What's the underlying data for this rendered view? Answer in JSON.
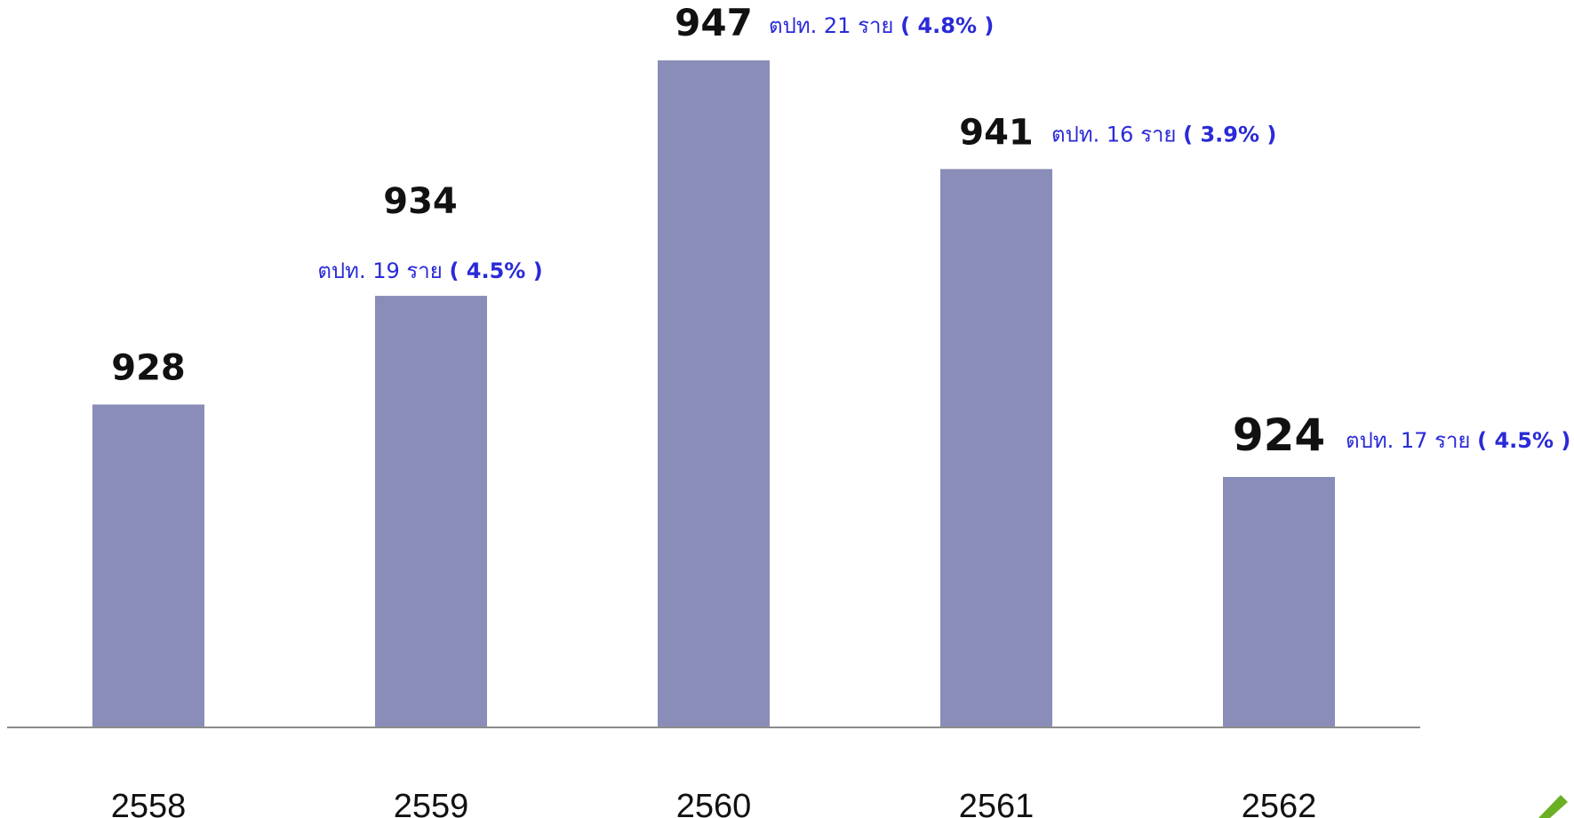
{
  "chart_data": {
    "type": "bar",
    "categories": [
      "2558",
      "2559",
      "2560",
      "2561",
      "2562"
    ],
    "values": [
      928,
      934,
      947,
      941,
      924
    ],
    "value_labels": [
      "928",
      "934",
      "947",
      "941",
      "924"
    ],
    "annotations": [
      null,
      {
        "prefix": "ตปท. 19 ราย",
        "pct": "( 4.5% )"
      },
      {
        "prefix": "ตปท. 21 ราย",
        "pct": "( 4.8% )"
      },
      {
        "prefix": "ตปท. 16 ราย",
        "pct": "( 3.9% )"
      },
      {
        "prefix": "ตปท. 17 ราย",
        "pct": "( 4.5% )"
      }
    ],
    "title": "",
    "xlabel": "",
    "ylabel": "",
    "ylim": [
      910,
      950
    ],
    "grid": false,
    "legend": "none",
    "colors": {
      "bar": "#8a8db8",
      "axis": "#8c8c8c",
      "value_text": "#111111",
      "note_text": "#2a2ad8",
      "corner_accent": "#6ab023"
    }
  }
}
